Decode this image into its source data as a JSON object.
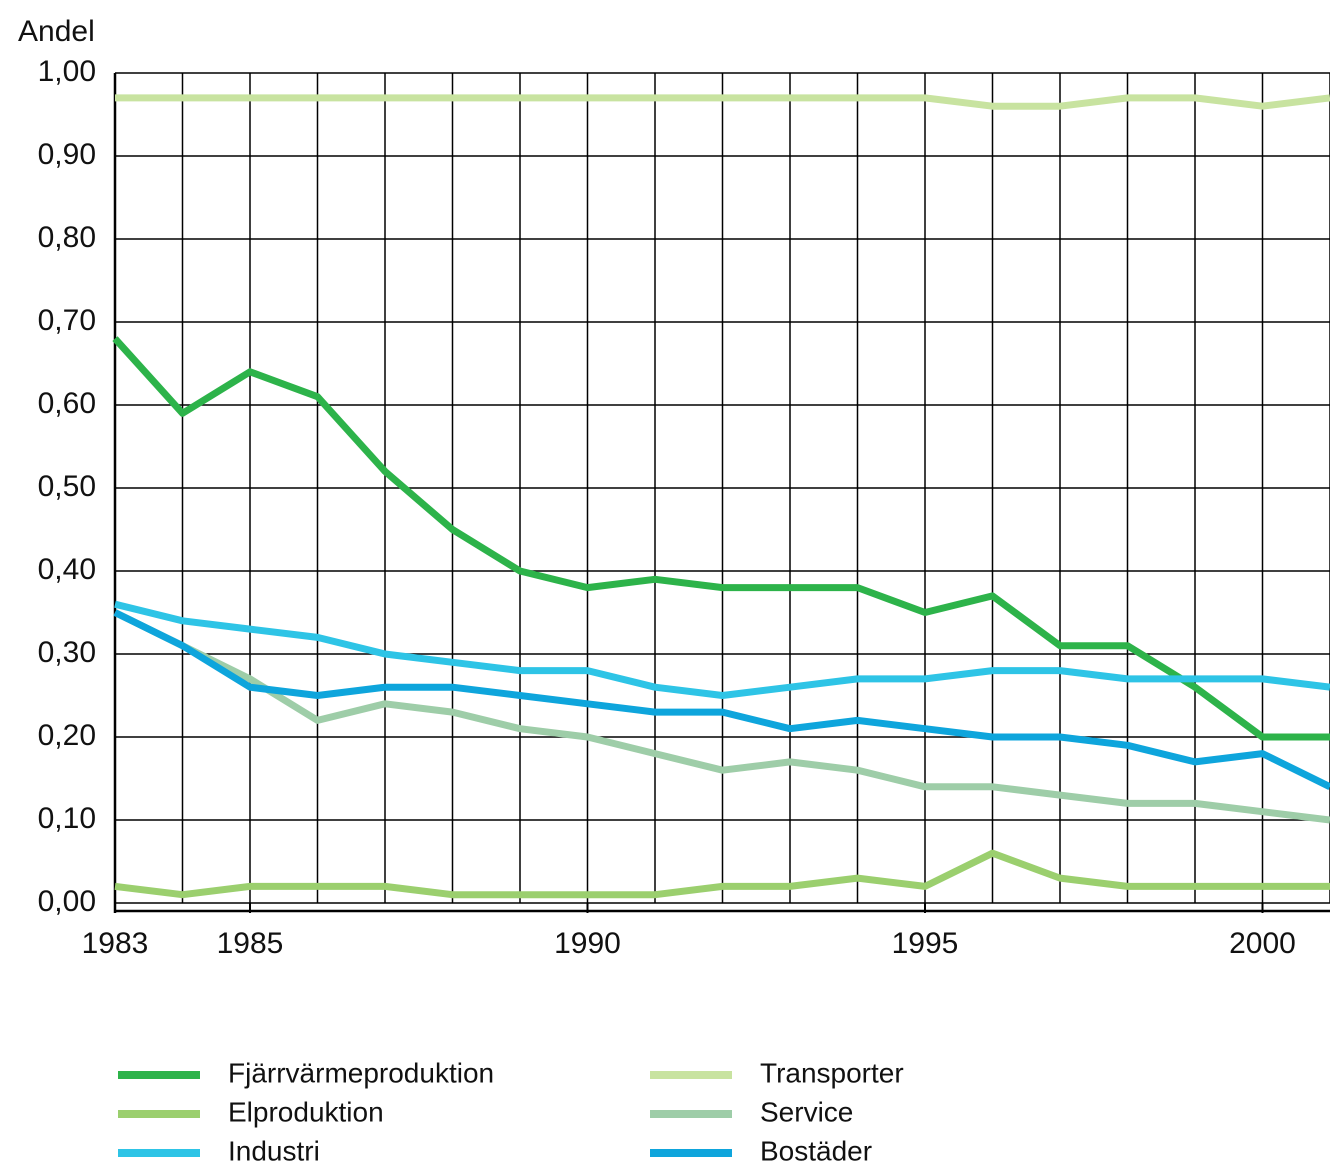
{
  "chart_data": {
    "type": "line",
    "y_label": "Andel",
    "x": [
      1983,
      1984,
      1985,
      1986,
      1987,
      1988,
      1989,
      1990,
      1991,
      1992,
      1993,
      1994,
      1995,
      1996,
      1997,
      1998,
      1999,
      2000,
      2001
    ],
    "xlim": [
      1983,
      2001
    ],
    "xticks": [
      1983,
      1985,
      1990,
      1995,
      2000
    ],
    "ylim": [
      0,
      1
    ],
    "yticks": [
      {
        "value": 0,
        "label": "0,00"
      },
      {
        "value": 0.1,
        "label": "0,10"
      },
      {
        "value": 0.2,
        "label": "0,20"
      },
      {
        "value": 0.3,
        "label": "0,30"
      },
      {
        "value": 0.4,
        "label": "0,40"
      },
      {
        "value": 0.5,
        "label": "0,50"
      },
      {
        "value": 0.6,
        "label": "0,60"
      },
      {
        "value": 0.7,
        "label": "0,70"
      },
      {
        "value": 0.8,
        "label": "0,80"
      },
      {
        "value": 0.9,
        "label": "0,90"
      },
      {
        "value": 1,
        "label": "1,00"
      }
    ],
    "grid": true,
    "series": [
      {
        "name": "Fjärrvärmeproduktion",
        "color": "#2db34a",
        "values": [
          0.68,
          0.59,
          0.64,
          0.61,
          0.52,
          0.45,
          0.4,
          0.38,
          0.39,
          0.38,
          0.38,
          0.38,
          0.35,
          0.37,
          0.31,
          0.31,
          0.26,
          0.2,
          0.2
        ]
      },
      {
        "name": "Elproduktion",
        "color": "#9bcf6e",
        "values": [
          0.02,
          0.01,
          0.02,
          0.02,
          0.02,
          0.01,
          0.01,
          0.01,
          0.01,
          0.02,
          0.02,
          0.03,
          0.02,
          0.06,
          0.03,
          0.02,
          0.02,
          0.02,
          0.02
        ]
      },
      {
        "name": "Industri",
        "color": "#2ec4e6",
        "values": [
          0.36,
          0.34,
          0.33,
          0.32,
          0.3,
          0.29,
          0.28,
          0.28,
          0.26,
          0.25,
          0.26,
          0.27,
          0.27,
          0.28,
          0.28,
          0.27,
          0.27,
          0.27,
          0.26
        ]
      },
      {
        "name": "Transporter",
        "color": "#c8e3a0",
        "values": [
          0.97,
          0.97,
          0.97,
          0.97,
          0.97,
          0.97,
          0.97,
          0.97,
          0.97,
          0.97,
          0.97,
          0.97,
          0.97,
          0.96,
          0.96,
          0.97,
          0.97,
          0.96,
          0.97
        ]
      },
      {
        "name": "Service",
        "color": "#9ecda8",
        "values": [
          0.35,
          0.31,
          0.27,
          0.22,
          0.24,
          0.23,
          0.21,
          0.2,
          0.18,
          0.16,
          0.17,
          0.16,
          0.14,
          0.14,
          0.13,
          0.12,
          0.12,
          0.11,
          0.1
        ]
      },
      {
        "name": "Bostäder",
        "color": "#0ea5dc",
        "values": [
          0.35,
          0.31,
          0.26,
          0.25,
          0.26,
          0.26,
          0.25,
          0.24,
          0.23,
          0.23,
          0.21,
          0.22,
          0.21,
          0.2,
          0.2,
          0.19,
          0.17,
          0.18,
          0.14
        ]
      }
    ]
  }
}
